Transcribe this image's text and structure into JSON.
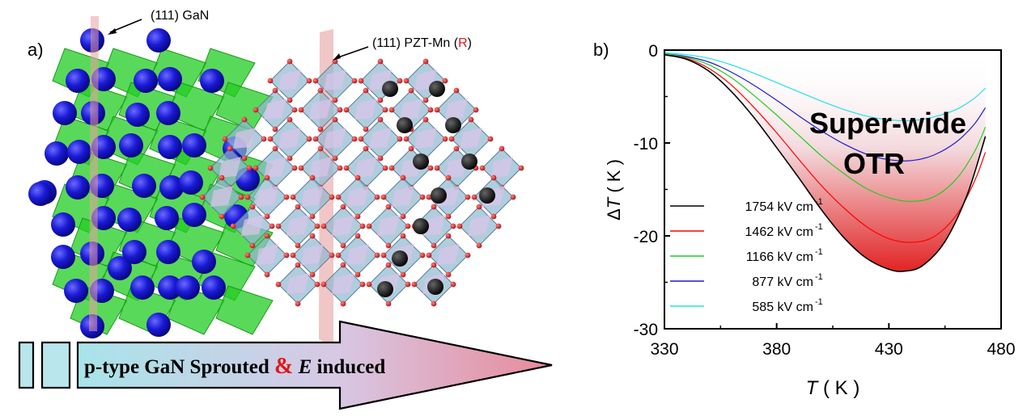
{
  "panel_a": {
    "label": "a)",
    "gan_label": "(111) GaN",
    "pzt_label_prefix": "(111) PZT-Mn (",
    "pzt_label_r": "R",
    "pzt_label_suffix": ")",
    "arrow_text_part1": "p-type GaN Sprouted ",
    "arrow_text_amp": "&",
    "arrow_text_e": "E",
    "arrow_text_part2": " induced",
    "colors": {
      "gan_atom": "#1a1ad6",
      "gan_tetra": "#22cc22",
      "pzt_octa": "#8fb8d0",
      "pzt_oxygen": "#d42020",
      "pzt_dark_atom": "#111111",
      "plane": "#e8a0a0",
      "arrow_start": "#a8e4ea",
      "arrow_end": "#e88a9a"
    }
  },
  "chart_data": {
    "panel_label": "b)",
    "type": "line",
    "xlabel_var": "T",
    "xlabel_unit": "( K )",
    "ylabel_prefix": "Δ",
    "ylabel_var": "T",
    "ylabel_unit": "( K )",
    "xlim": [
      330,
      480
    ],
    "ylim": [
      -30,
      0
    ],
    "xticks": [
      330,
      380,
      430,
      480
    ],
    "yticks": [
      0,
      -10,
      -20,
      -30
    ],
    "annotation_line1": "Super-wide",
    "annotation_line2": "OTR",
    "legend_position": "lower-left",
    "series": [
      {
        "name": "1754 kV cm",
        "sup": "-1",
        "color": "#000000",
        "x": [
          330,
          340,
          350,
          360,
          370,
          380,
          390,
          400,
          410,
          420,
          430,
          437,
          445,
          455,
          465,
          473
        ],
        "y": [
          -0.5,
          -1.0,
          -2.3,
          -4.5,
          -7.3,
          -10.5,
          -13.8,
          -17.2,
          -20.2,
          -22.4,
          -23.6,
          -23.8,
          -23.2,
          -20.6,
          -15.5,
          -9.3
        ]
      },
      {
        "name": "1462 kV cm",
        "sup": "-1",
        "color": "#ff0000",
        "x": [
          330,
          340,
          350,
          360,
          370,
          380,
          390,
          400,
          410,
          420,
          430,
          440,
          450,
          460,
          468,
          473
        ],
        "y": [
          -0.5,
          -0.9,
          -2.0,
          -3.8,
          -6.2,
          -8.9,
          -11.8,
          -14.6,
          -17.0,
          -19.0,
          -20.3,
          -20.7,
          -20.1,
          -17.8,
          -14.2,
          -11.0
        ]
      },
      {
        "name": "1166 kV cm",
        "sup": "-1",
        "color": "#22cc22",
        "x": [
          330,
          340,
          350,
          360,
          370,
          380,
          390,
          400,
          410,
          420,
          430,
          440,
          450,
          460,
          468,
          473
        ],
        "y": [
          -0.4,
          -0.8,
          -1.6,
          -3.0,
          -4.9,
          -7.0,
          -9.2,
          -11.4,
          -13.3,
          -14.9,
          -15.9,
          -16.3,
          -15.8,
          -13.9,
          -11.0,
          -8.3
        ]
      },
      {
        "name": "877 kV cm",
        "sup": "-1",
        "color": "#1c1cd0",
        "x": [
          330,
          340,
          350,
          360,
          370,
          380,
          390,
          400,
          410,
          420,
          430,
          440,
          450,
          460,
          468,
          473
        ],
        "y": [
          -0.4,
          -0.7,
          -1.3,
          -2.4,
          -3.8,
          -5.4,
          -7.1,
          -8.7,
          -10.1,
          -11.2,
          -11.8,
          -11.9,
          -11.3,
          -9.9,
          -8.0,
          -6.2
        ]
      },
      {
        "name": "585 kV cm",
        "sup": "-1",
        "color": "#22e0e8",
        "x": [
          330,
          340,
          350,
          360,
          370,
          380,
          390,
          400,
          410,
          420,
          430,
          440,
          450,
          460,
          468,
          473
        ],
        "y": [
          -0.3,
          -0.5,
          -0.9,
          -1.6,
          -2.5,
          -3.5,
          -4.5,
          -5.5,
          -6.4,
          -7.1,
          -7.5,
          -7.6,
          -7.2,
          -6.4,
          -5.2,
          -4.1
        ]
      }
    ]
  }
}
